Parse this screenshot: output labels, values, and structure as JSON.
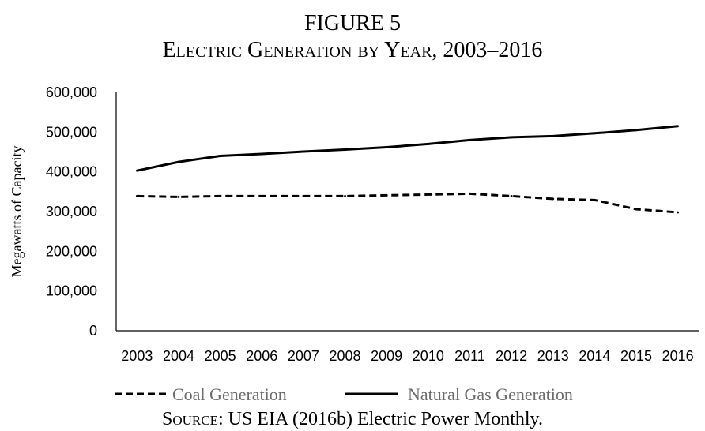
{
  "figure": {
    "label": "FIGURE 5",
    "title": "Electric Generation by Year, 2003–2016",
    "source_prefix": "Source",
    "source_rest": ": US EIA (2016b) Electric Power Monthly."
  },
  "chart_data": {
    "type": "line",
    "title": "Electric Generation by Year, 2003–2016",
    "xlabel": "",
    "ylabel": "Megawatts of Capacity",
    "ylim": [
      0,
      600000
    ],
    "yticks": [
      "0",
      "100,000",
      "200,000",
      "300,000",
      "400,000",
      "500,000",
      "600,000"
    ],
    "categories": [
      "2003",
      "2004",
      "2005",
      "2006",
      "2007",
      "2008",
      "2009",
      "2010",
      "2011",
      "2012",
      "2013",
      "2014",
      "2015",
      "2016"
    ],
    "grid": false,
    "legend_position": "bottom",
    "series": [
      {
        "name": "Coal Generation",
        "style": "dashed",
        "color": "#000000",
        "values": [
          339000,
          337000,
          339000,
          339000,
          339000,
          339000,
          341000,
          343000,
          345000,
          339000,
          332000,
          329000,
          306000,
          298000
        ]
      },
      {
        "name": "Natural Gas Generation",
        "style": "solid",
        "color": "#000000",
        "values": [
          403000,
          425000,
          440000,
          445000,
          451000,
          456000,
          462000,
          470000,
          480000,
          487000,
          490000,
          497000,
          505000,
          515000
        ]
      }
    ]
  }
}
